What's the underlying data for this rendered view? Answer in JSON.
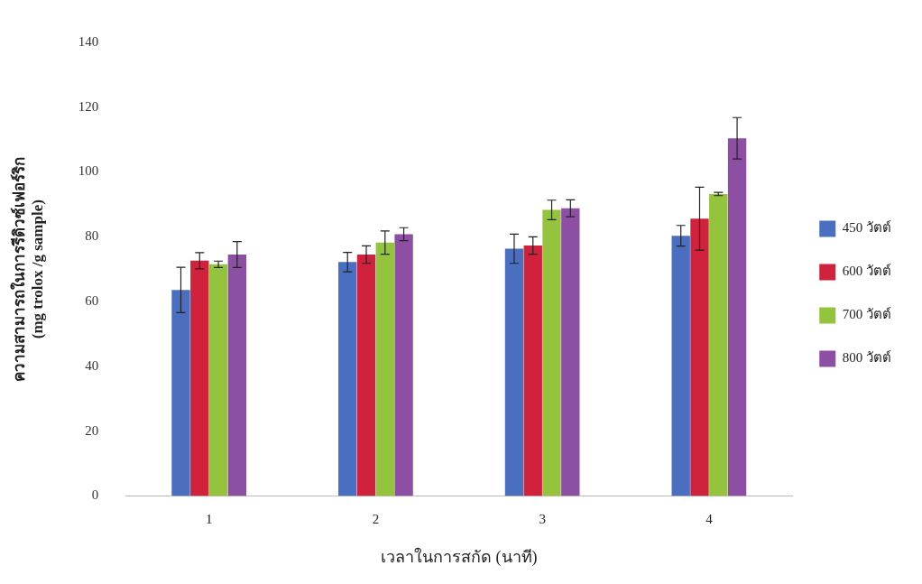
{
  "chart_data": {
    "type": "bar",
    "xlabel": "เวลาในการสกัด (นาที)",
    "ylabel": "ความสามารถในการรีดิวซ์เฟอร์ริก\n(mg trolox /g sample)",
    "categories": [
      "1",
      "2",
      "3",
      "4"
    ],
    "series": [
      {
        "name": "450 วัตต์",
        "color": "#4a6fc0",
        "values": [
          63.6,
          72.2,
          76.3,
          80.3
        ],
        "errors": [
          7,
          3,
          4.5,
          3.2
        ]
      },
      {
        "name": "600 วัตต์",
        "color": "#d0213d",
        "values": [
          72.6,
          74.5,
          77.3,
          85.6
        ],
        "errors": [
          2.5,
          2.7,
          2.7,
          9.7
        ]
      },
      {
        "name": "700 วัตต์",
        "color": "#94c43e",
        "values": [
          71.5,
          78.2,
          88.3,
          93.2
        ],
        "errors": [
          1,
          3.6,
          3,
          0.5
        ]
      },
      {
        "name": "800 วัตต์",
        "color": "#8c4fa4",
        "values": [
          74.5,
          80.8,
          88.8,
          110.4
        ],
        "errors": [
          4,
          2,
          2.6,
          6.4
        ]
      }
    ],
    "ylim": [
      0,
      140
    ],
    "yticks": [
      0,
      20,
      40,
      60,
      80,
      100,
      120,
      140
    ],
    "grid": false,
    "legend": "right"
  }
}
